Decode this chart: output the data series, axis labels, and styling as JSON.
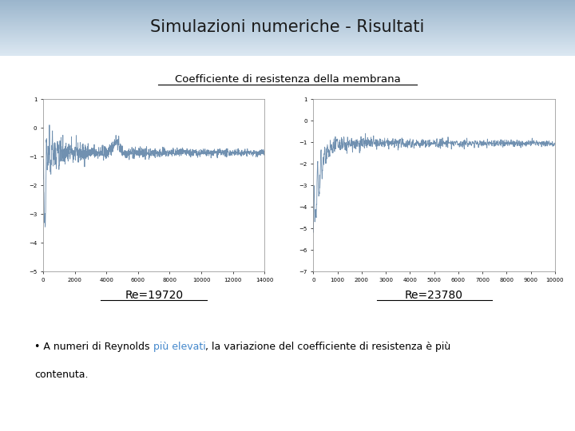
{
  "title": "Simulazioni numeriche - Risultati",
  "subtitle": "Coefficiente di resistenza della membrana",
  "label_re1": "Re=19720",
  "label_re2": "Re=23780",
  "bullet_pre": "• A numeri di Reynolds ",
  "bullet_highlight": "più elevati",
  "bullet_post": ", la variazione del coefficiente di resistenza è più",
  "bullet_line2": "contenuta.",
  "bg_top_color": "#9ab5cc",
  "bg_bottom_color": "#dce8f2",
  "title_color": "#1a1a1a",
  "plot_line_color": "#7090b0",
  "highlight_color": "#4488cc",
  "plot1_xlim": [
    0,
    14000
  ],
  "plot1_ylim": [
    -5,
    1
  ],
  "plot1_xticks": [
    0,
    2000,
    4000,
    6000,
    8000,
    10000,
    12000,
    14000
  ],
  "plot1_yticks": [
    -5,
    -4,
    -3,
    -2,
    -1,
    0,
    1
  ],
  "plot2_xlim": [
    0,
    10000
  ],
  "plot2_ylim": [
    -7,
    1
  ],
  "plot2_xticks": [
    0,
    1000,
    2000,
    3000,
    4000,
    5000,
    6000,
    7000,
    8000,
    9000,
    10000
  ],
  "plot2_yticks": [
    -7,
    -6,
    -5,
    -4,
    -3,
    -2,
    -1,
    0,
    1
  ]
}
